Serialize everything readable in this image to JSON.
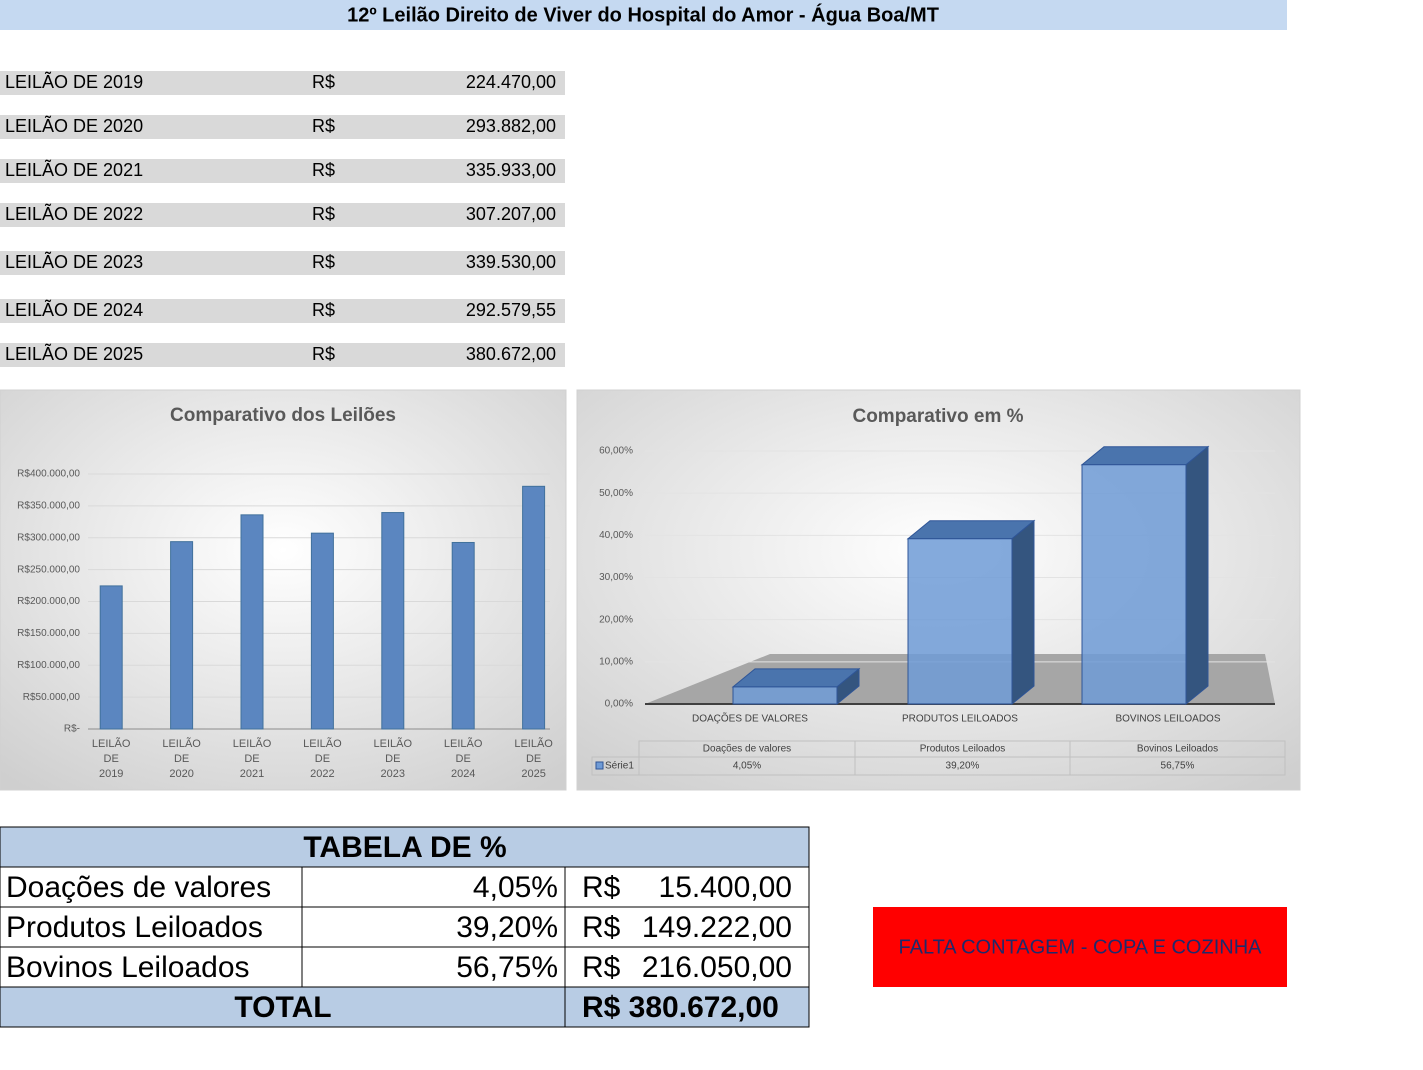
{
  "header": {
    "title": "12º Leilão Direito de Viver do Hospital do Amor - Água Boa/MT"
  },
  "auctions": {
    "rows": [
      [
        "LEILÃO DE 2019",
        "R$",
        "224.470,00"
      ],
      [
        "LEILÃO DE 2020",
        "R$",
        "293.882,00"
      ],
      [
        "LEILÃO DE 2021",
        "R$",
        "335.933,00"
      ],
      [
        "LEILÃO DE 2022",
        "R$",
        "307.207,00"
      ],
      [
        "LEILÃO DE 2023",
        "R$",
        "339.530,00"
      ],
      [
        "LEILÃO DE 2024",
        "R$",
        "292.579,55"
      ],
      [
        "LEILÃO DE 2025",
        "R$",
        "380.672,00"
      ]
    ]
  },
  "chart_data": [
    {
      "type": "bar",
      "title": "Comparativo dos Leilões",
      "categories": [
        "LEILÃO DE 2019",
        "LEILÃO DE 2020",
        "LEILÃO DE 2021",
        "LEILÃO DE 2022",
        "LEILÃO DE 2023",
        "LEILÃO DE 2024",
        "LEILÃO DE 2025"
      ],
      "values": [
        224470,
        293882,
        335933,
        307207,
        339530,
        292579.55,
        380672
      ],
      "color": "#5b86c0",
      "ylim": [
        0,
        400000
      ],
      "yticks": [
        {
          "value": 0,
          "label": "R$-"
        },
        {
          "value": 50000,
          "label": "R$50.000,00"
        },
        {
          "value": 100000,
          "label": "R$100.000,00"
        },
        {
          "value": 150000,
          "label": "R$150.000,00"
        },
        {
          "value": 200000,
          "label": "R$200.000,00"
        },
        {
          "value": 250000,
          "label": "R$250.000,00"
        },
        {
          "value": 300000,
          "label": "R$300.000,00"
        },
        {
          "value": 350000,
          "label": "R$350.000,00"
        },
        {
          "value": 400000,
          "label": "R$400.000,00"
        }
      ],
      "grid": true
    },
    {
      "type": "bar3d",
      "title": "Comparativo em %",
      "categories": [
        "DOAÇÕES DE VALORES",
        "PRODUTOS LEILOADOS",
        "BOVINOS LEILOADOS"
      ],
      "table_headers": [
        "Doações de valores",
        "Produtos Leiloados",
        "Bovinos Leiloados"
      ],
      "series": [
        {
          "name": "Série1",
          "color": "#6f9bd6",
          "values": [
            4.05,
            39.2,
            56.75
          ],
          "value_labels": [
            "4,05%",
            "39,20%",
            "56,75%"
          ]
        }
      ],
      "ylim": [
        0,
        60
      ],
      "yticks": [
        {
          "value": 0,
          "label": "0,00%"
        },
        {
          "value": 10,
          "label": "10,00%"
        },
        {
          "value": 20,
          "label": "20,00%"
        },
        {
          "value": 30,
          "label": "30,00%"
        },
        {
          "value": 40,
          "label": "40,00%"
        },
        {
          "value": 50,
          "label": "50,00%"
        },
        {
          "value": 60,
          "label": "60,00%"
        }
      ],
      "grid": true
    }
  ],
  "pct_table": {
    "title": "TABELA DE %",
    "rows": [
      [
        "Doações de valores",
        "4,05%",
        "R$",
        "15.400,00"
      ],
      [
        "Produtos Leiloados",
        "39,20%",
        "R$",
        "149.222,00"
      ],
      [
        "Bovinos Leiloados",
        "56,75%",
        "R$",
        "216.050,00"
      ]
    ],
    "total": [
      "TOTAL",
      "R$ 380.672,00"
    ]
  },
  "note": "FALTA CONTAGEM - COPA E COZINHA"
}
